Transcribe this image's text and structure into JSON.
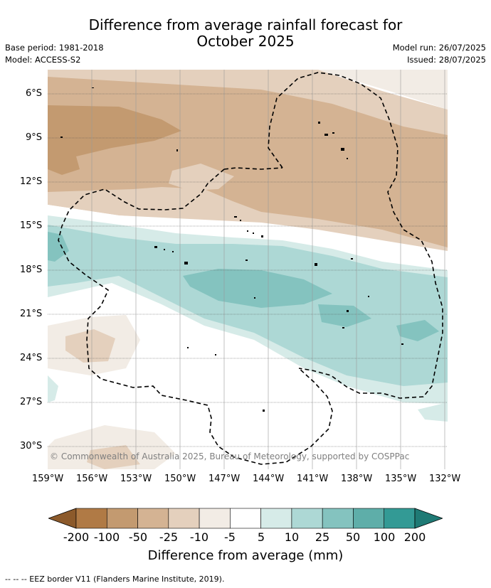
{
  "title_line1": "Difference from average rainfall forecast for",
  "title_line2": "October 2025",
  "base_period": "Base period: 1981-2018",
  "model": "Model: ACCESS-S2",
  "model_run": "Model run: 26/07/2025",
  "issued": "Issued: 28/07/2025",
  "lat_ticks": [
    "6°S",
    "9°S",
    "12°S",
    "15°S",
    "18°S",
    "21°S",
    "24°S",
    "27°S",
    "30°S"
  ],
  "lon_ticks": [
    "159°W",
    "156°W",
    "153°W",
    "150°W",
    "147°W",
    "144°W",
    "141°W",
    "138°W",
    "135°W",
    "132°W"
  ],
  "copyright": "© Commonwealth of Australia 2025, Bureau of Meteorology, supported by COSPPac",
  "colorbar": {
    "labels": [
      "-200",
      "-100",
      "-50",
      "-25",
      "-10",
      "-5",
      "5",
      "10",
      "25",
      "50",
      "100",
      "200"
    ],
    "colors": [
      "#8c5a2b",
      "#b07a45",
      "#c39a70",
      "#d4b393",
      "#e4d0bd",
      "#f2ece5",
      "#ffffff",
      "#d6ebe8",
      "#add8d5",
      "#84c3bf",
      "#5eaea9",
      "#339a95",
      "#1f7a75"
    ],
    "title": "Difference from average (mm)"
  },
  "footnote": "--  --  -- EEZ border V11 (Flanders Marine Institute, 2019)."
}
